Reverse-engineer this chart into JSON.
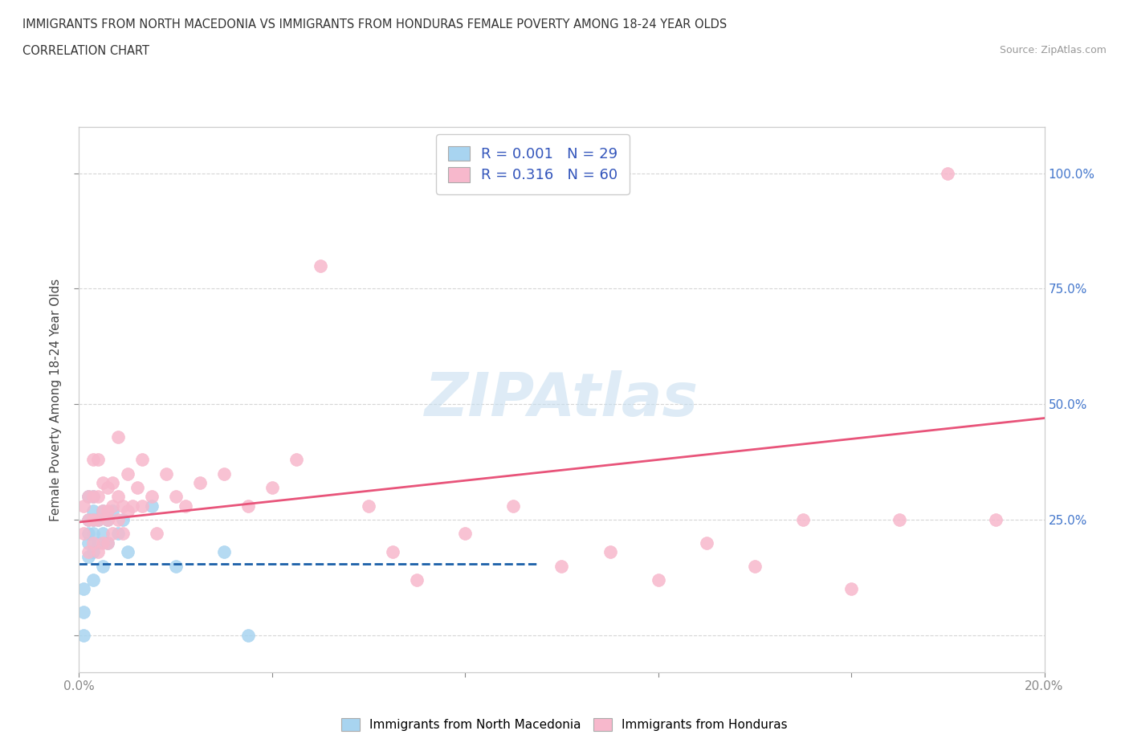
{
  "title_line1": "IMMIGRANTS FROM NORTH MACEDONIA VS IMMIGRANTS FROM HONDURAS FEMALE POVERTY AMONG 18-24 YEAR OLDS",
  "title_line2": "CORRELATION CHART",
  "source_text": "Source: ZipAtlas.com",
  "ylabel": "Female Poverty Among 18-24 Year Olds",
  "xlim": [
    0.0,
    0.2
  ],
  "ylim": [
    -0.08,
    1.1
  ],
  "background_color": "#ffffff",
  "grid_color": "#cccccc",
  "watermark_text": "ZIPAtlas",
  "blue_scatter_color": "#a8d4f0",
  "pink_scatter_color": "#f7b8cc",
  "blue_line_color": "#1a5fa8",
  "pink_line_color": "#e8547a",
  "legend_R_color": "#3355bb",
  "R_north_macedonia": 0.001,
  "N_north_macedonia": 29,
  "R_honduras": 0.316,
  "N_honduras": 60,
  "nm_x": [
    0.001,
    0.001,
    0.001,
    0.002,
    0.002,
    0.002,
    0.002,
    0.002,
    0.003,
    0.003,
    0.003,
    0.003,
    0.003,
    0.003,
    0.004,
    0.004,
    0.005,
    0.005,
    0.005,
    0.006,
    0.006,
    0.007,
    0.008,
    0.009,
    0.01,
    0.015,
    0.02,
    0.03,
    0.035
  ],
  "nm_y": [
    0.0,
    0.05,
    0.1,
    0.17,
    0.2,
    0.22,
    0.25,
    0.3,
    0.12,
    0.18,
    0.22,
    0.25,
    0.27,
    0.3,
    0.2,
    0.25,
    0.15,
    0.22,
    0.27,
    0.2,
    0.25,
    0.27,
    0.22,
    0.25,
    0.18,
    0.28,
    0.15,
    0.18,
    0.0
  ],
  "hon_x": [
    0.001,
    0.001,
    0.002,
    0.002,
    0.002,
    0.003,
    0.003,
    0.003,
    0.003,
    0.004,
    0.004,
    0.004,
    0.004,
    0.005,
    0.005,
    0.005,
    0.006,
    0.006,
    0.006,
    0.006,
    0.007,
    0.007,
    0.007,
    0.008,
    0.008,
    0.008,
    0.009,
    0.009,
    0.01,
    0.01,
    0.011,
    0.012,
    0.013,
    0.013,
    0.015,
    0.016,
    0.018,
    0.02,
    0.022,
    0.025,
    0.03,
    0.035,
    0.04,
    0.045,
    0.05,
    0.06,
    0.065,
    0.07,
    0.08,
    0.09,
    0.1,
    0.11,
    0.12,
    0.13,
    0.14,
    0.15,
    0.16,
    0.17,
    0.18,
    0.19
  ],
  "hon_y": [
    0.22,
    0.28,
    0.18,
    0.25,
    0.3,
    0.2,
    0.25,
    0.3,
    0.38,
    0.18,
    0.25,
    0.3,
    0.38,
    0.2,
    0.27,
    0.33,
    0.2,
    0.25,
    0.27,
    0.32,
    0.22,
    0.28,
    0.33,
    0.25,
    0.3,
    0.43,
    0.22,
    0.28,
    0.27,
    0.35,
    0.28,
    0.32,
    0.28,
    0.38,
    0.3,
    0.22,
    0.35,
    0.3,
    0.28,
    0.33,
    0.35,
    0.28,
    0.32,
    0.38,
    0.8,
    0.28,
    0.18,
    0.12,
    0.22,
    0.28,
    0.15,
    0.18,
    0.12,
    0.2,
    0.15,
    0.25,
    0.1,
    0.25,
    1.0,
    0.25
  ],
  "blue_line_x": [
    0.0,
    0.095
  ],
  "blue_line_y": [
    0.155,
    0.155
  ],
  "pink_line_x": [
    0.0,
    0.2
  ],
  "pink_line_y": [
    0.245,
    0.47
  ]
}
